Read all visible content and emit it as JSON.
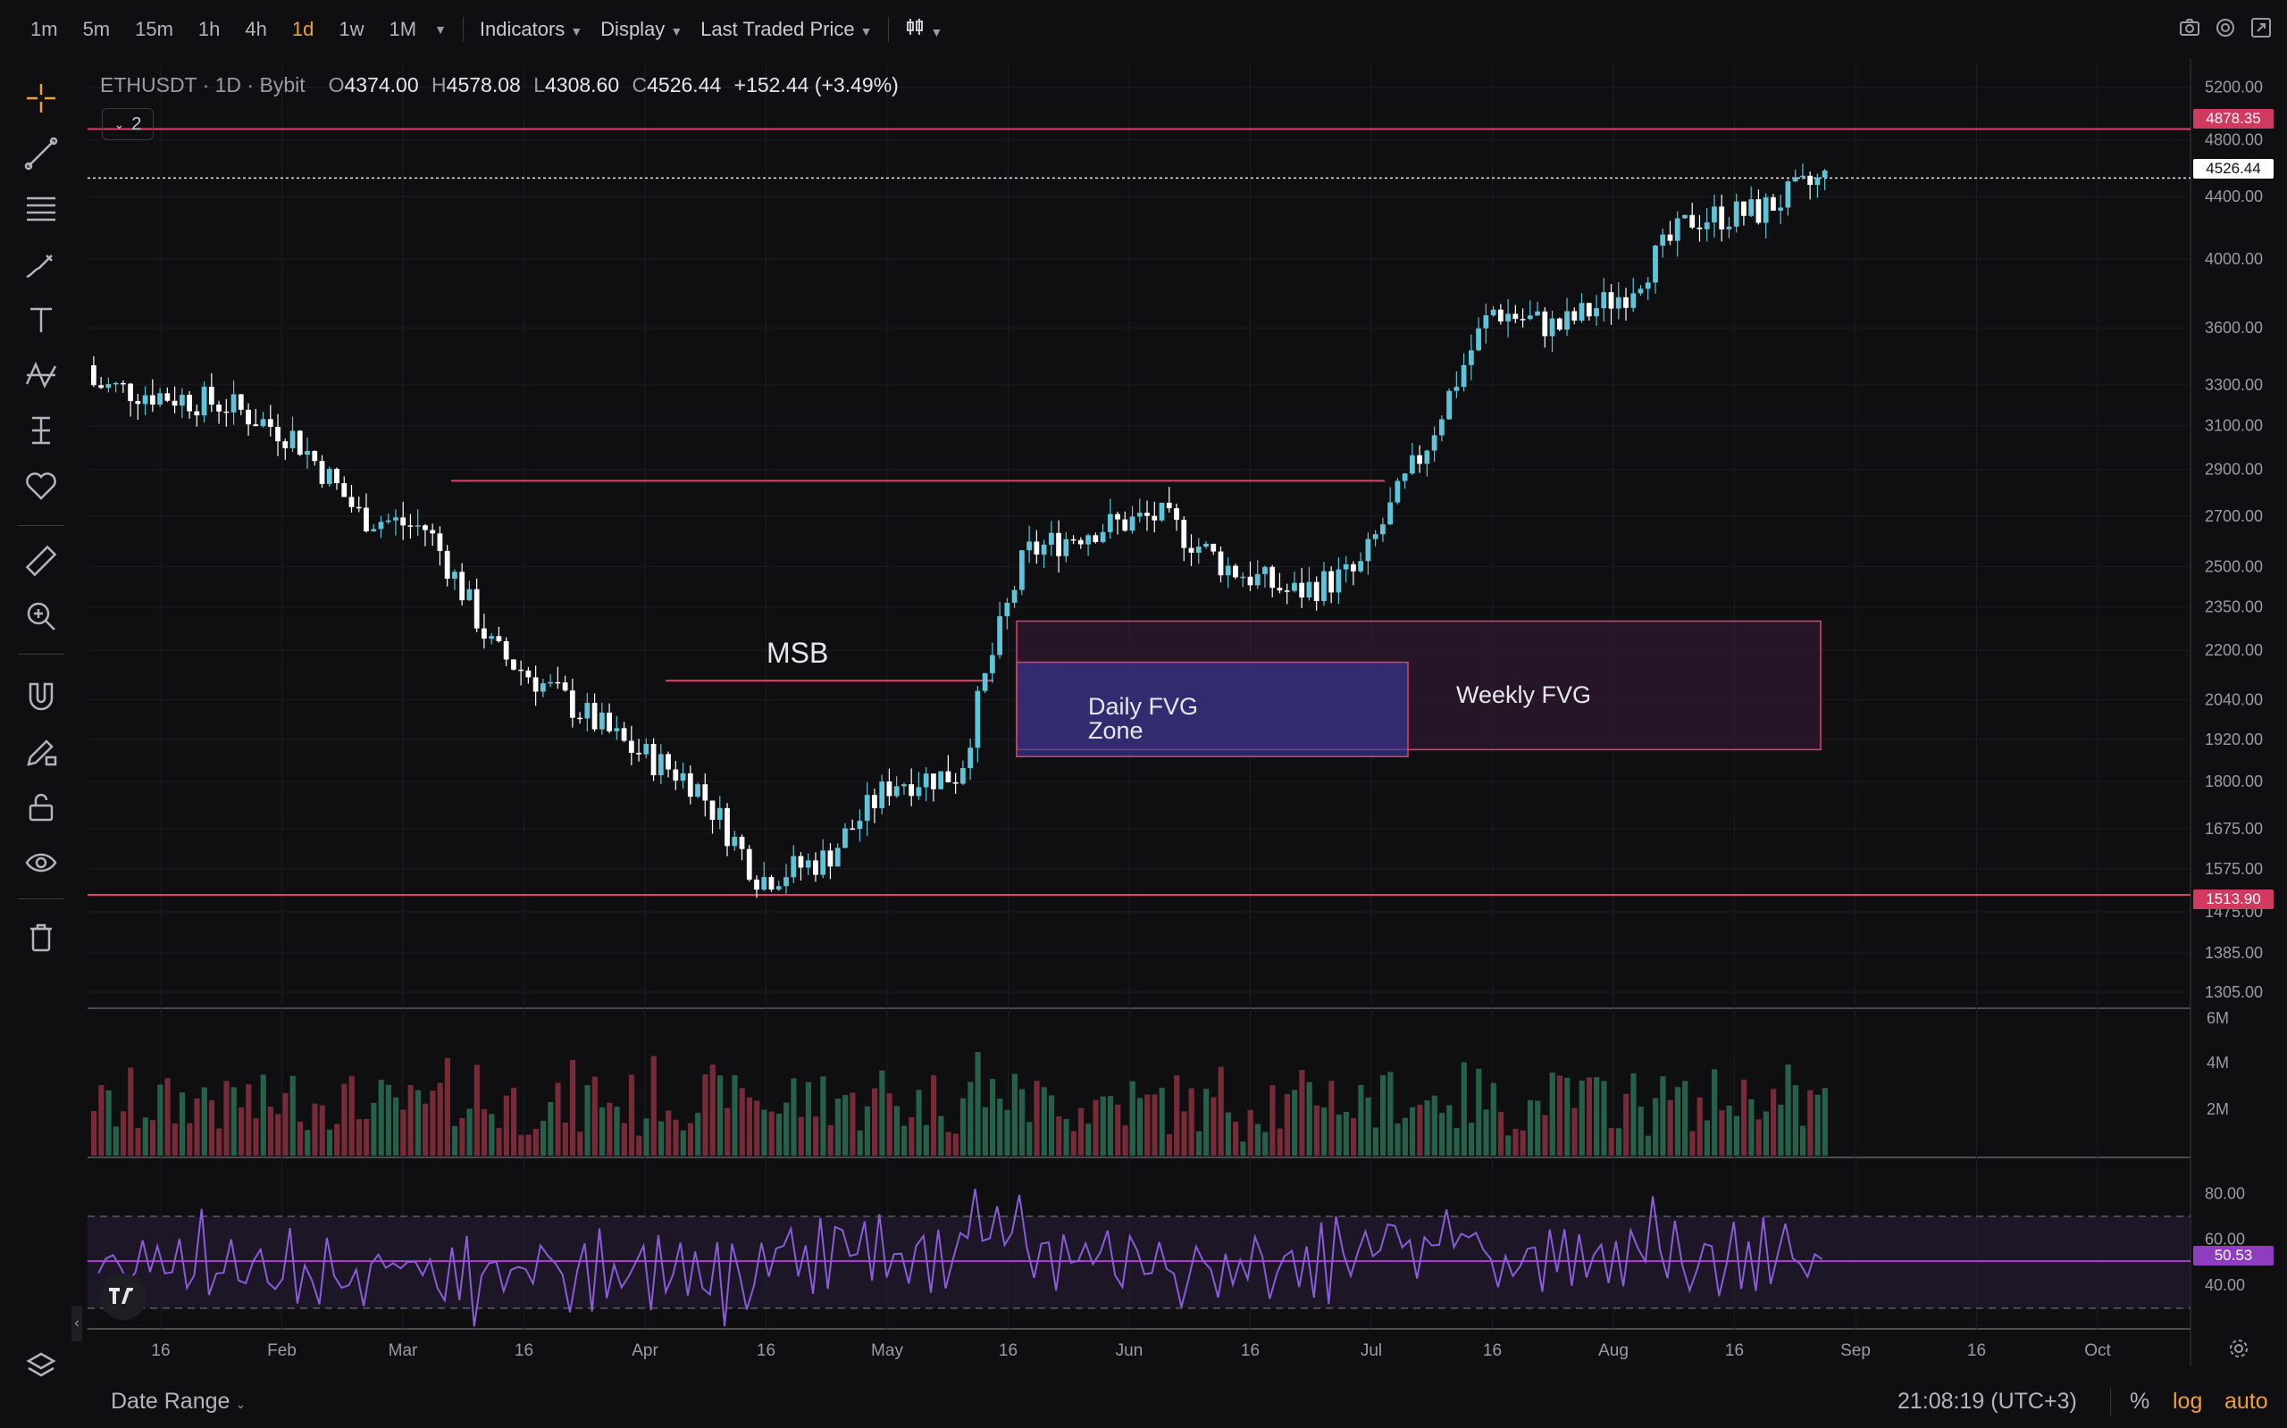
{
  "toolbar": {
    "timeframes": [
      "1m",
      "5m",
      "15m",
      "1h",
      "4h",
      "1d",
      "1w",
      "1M"
    ],
    "active_timeframe": "1d",
    "indicators_label": "Indicators",
    "display_label": "Display",
    "price_source_label": "Last Traded Price"
  },
  "legend": {
    "symbol": "ETHUSDT · 1D · Bybit",
    "o_key": "O",
    "o_val": "4374.00",
    "h_key": "H",
    "h_val": "4578.08",
    "l_key": "L",
    "l_val": "4308.60",
    "c_key": "C",
    "c_val": "4526.44",
    "change": "+152.44 (+3.49%)",
    "indicator_count": "2"
  },
  "annotations": {
    "msb": "MSB",
    "daily_fvg_line1": "Daily FVG",
    "daily_fvg_line2": "Zone",
    "weekly_fvg": "Weekly FVG"
  },
  "price_tags": {
    "resistance": "4878.35",
    "last": "4526.44",
    "support": "1513.90",
    "rsi": "50.53"
  },
  "colors": {
    "background": "#0f0f12",
    "up": "#5ec4d8",
    "down": "#ffffff",
    "level_line": "#e0406a",
    "daily_fvg": "#3a3aa0",
    "weekly_fvg": "#3a1a3a",
    "rsi_line": "#8a5cd8",
    "active_timeframe": "#f0a030"
  },
  "chart_data": {
    "type": "candlestick",
    "symbol": "ETHUSDT",
    "price_scale": "log",
    "price_ticks": [
      "5200.00",
      "4800.00",
      "4400.00",
      "4000.00",
      "3600.00",
      "3300.00",
      "3100.00",
      "2900.00",
      "2700.00",
      "2500.00",
      "2350.00",
      "2200.00",
      "2040.00",
      "1920.00",
      "1800.00",
      "1675.00",
      "1575.00",
      "1475.00",
      "1385.00",
      "1305.00"
    ],
    "volume_ticks": [
      "6M",
      "4M",
      "2M"
    ],
    "rsi_ticks": [
      "80.00",
      "60.00",
      "40.00"
    ],
    "x_ticks": [
      "16",
      "Feb",
      "Mar",
      "16",
      "Apr",
      "16",
      "May",
      "16",
      "Jun",
      "16",
      "Jul",
      "16",
      "Aug",
      "16",
      "Sep",
      "16",
      "Oct"
    ],
    "weekly_closes_approx": [
      3300,
      3250,
      3200,
      3050,
      2700,
      2650,
      2200,
      2050,
      1900,
      1800,
      1550,
      1600,
      1800,
      1820,
      2550,
      2650,
      2700,
      2500,
      2400,
      2480,
      3000,
      3700,
      3600,
      3800,
      4250,
      4300,
      4526
    ],
    "levels": {
      "resistance": 4878.35,
      "support": 1513.9,
      "msb": 2100,
      "prior_high": 2850
    },
    "daily_fvg_zone": [
      1870,
      2160
    ],
    "weekly_fvg_zone": [
      1890,
      2300
    ],
    "rsi_last": 50.53
  },
  "footer": {
    "date_range_label": "Date Range",
    "clock": "21:08:19 (UTC+3)",
    "percent_label": "%",
    "log_label": "log",
    "auto_label": "auto"
  }
}
